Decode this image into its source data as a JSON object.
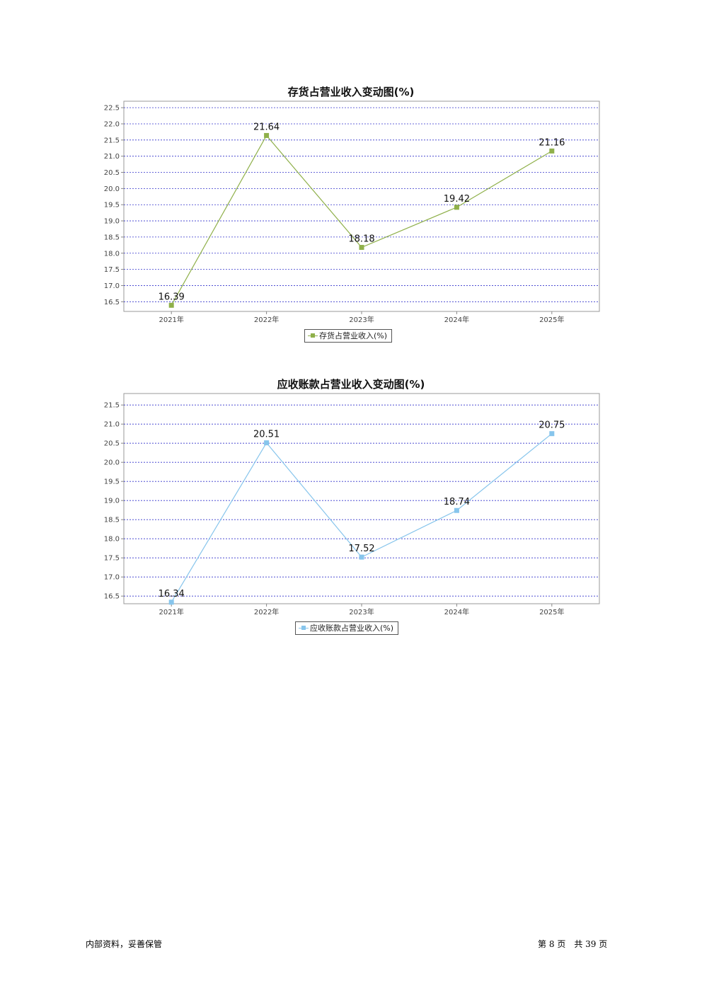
{
  "chart_data": [
    {
      "type": "line",
      "title": "存货占营业收入变动图(%)",
      "categories": [
        "2021年",
        "2022年",
        "2023年",
        "2024年",
        "2025年"
      ],
      "series": [
        {
          "name": "存货占营业收入(%)",
          "values": [
            16.39,
            21.64,
            18.18,
            19.42,
            21.16
          ],
          "color": "#8fb04a"
        }
      ],
      "yticks": [
        "22.5",
        "22.0",
        "21.5",
        "21.0",
        "20.5",
        "20.0",
        "19.5",
        "19.0",
        "18.5",
        "18.0",
        "17.5",
        "17.0",
        "16.5"
      ],
      "ylim": [
        16.2,
        22.7
      ],
      "grid": true,
      "legend": "bottom-center"
    },
    {
      "type": "line",
      "title": "应收账款占营业收入变动图(%)",
      "categories": [
        "2021年",
        "2022年",
        "2023年",
        "2024年",
        "2025年"
      ],
      "series": [
        {
          "name": "应收账款占营业收入(%)",
          "values": [
            16.34,
            20.51,
            17.52,
            18.74,
            20.75
          ],
          "color": "#87c5ec"
        }
      ],
      "yticks": [
        "21.5",
        "21.0",
        "20.5",
        "20.0",
        "19.5",
        "19.0",
        "18.5",
        "18.0",
        "17.5",
        "17.0",
        "16.5"
      ],
      "ylim": [
        16.3,
        21.8
      ],
      "grid": true,
      "legend": "bottom-center"
    }
  ],
  "footer": {
    "left": "内部资料，妥善保管",
    "page_prefix": "第",
    "page": "8",
    "page_mid": "页　共",
    "total": "39",
    "page_suffix": "页"
  }
}
